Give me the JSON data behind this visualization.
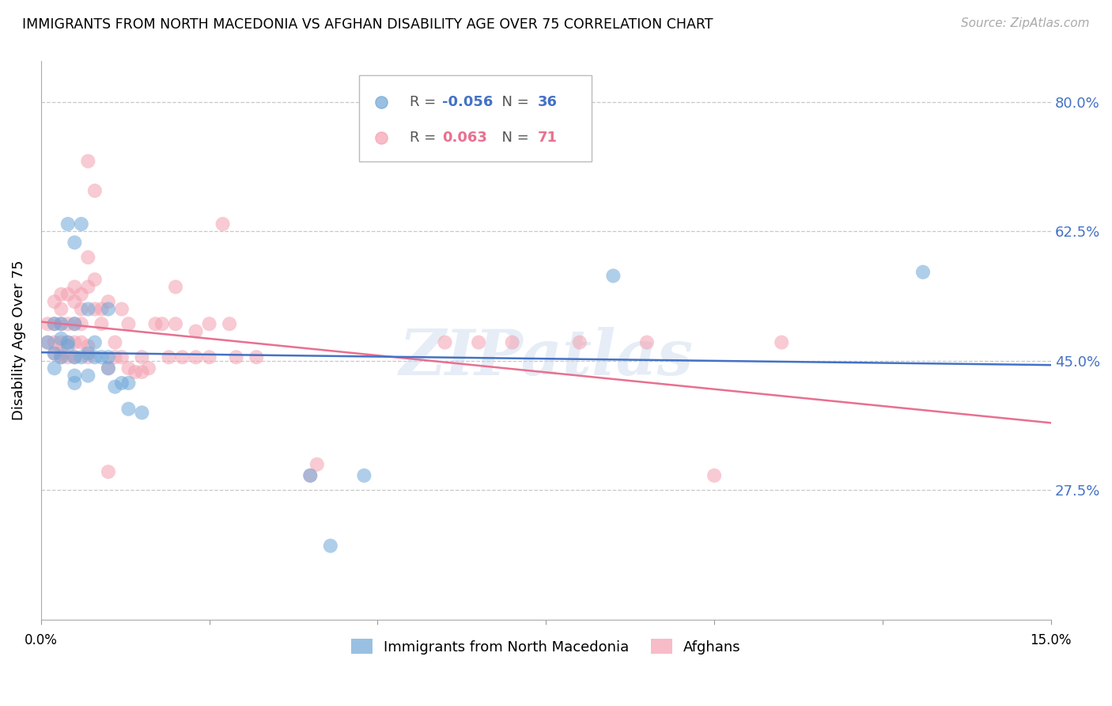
{
  "title": "IMMIGRANTS FROM NORTH MACEDONIA VS AFGHAN DISABILITY AGE OVER 75 CORRELATION CHART",
  "source": "Source: ZipAtlas.com",
  "ylabel": "Disability Age Over 75",
  "ytick_labels": [
    "80.0%",
    "62.5%",
    "45.0%",
    "27.5%"
  ],
  "ytick_values": [
    0.8,
    0.625,
    0.45,
    0.275
  ],
  "xmin": 0.0,
  "xmax": 0.15,
  "ymin": 0.1,
  "ymax": 0.855,
  "legend_blue_r": "-0.056",
  "legend_blue_n": "36",
  "legend_pink_r": "0.063",
  "legend_pink_n": "71",
  "blue_color": "#6EA6D7",
  "pink_color": "#F4A0B0",
  "blue_line_color": "#4472C4",
  "pink_line_color": "#E87090",
  "blue_scatter": [
    [
      0.001,
      0.475
    ],
    [
      0.002,
      0.46
    ],
    [
      0.002,
      0.5
    ],
    [
      0.003,
      0.48
    ],
    [
      0.003,
      0.455
    ],
    [
      0.003,
      0.5
    ],
    [
      0.004,
      0.475
    ],
    [
      0.004,
      0.47
    ],
    [
      0.004,
      0.635
    ],
    [
      0.005,
      0.61
    ],
    [
      0.005,
      0.5
    ],
    [
      0.005,
      0.455
    ],
    [
      0.005,
      0.43
    ],
    [
      0.005,
      0.42
    ],
    [
      0.006,
      0.635
    ],
    [
      0.006,
      0.455
    ],
    [
      0.007,
      0.52
    ],
    [
      0.007,
      0.46
    ],
    [
      0.007,
      0.43
    ],
    [
      0.008,
      0.475
    ],
    [
      0.008,
      0.455
    ],
    [
      0.009,
      0.455
    ],
    [
      0.01,
      0.52
    ],
    [
      0.01,
      0.455
    ],
    [
      0.01,
      0.44
    ],
    [
      0.011,
      0.415
    ],
    [
      0.012,
      0.42
    ],
    [
      0.013,
      0.42
    ],
    [
      0.013,
      0.385
    ],
    [
      0.015,
      0.38
    ],
    [
      0.04,
      0.295
    ],
    [
      0.043,
      0.2
    ],
    [
      0.048,
      0.295
    ],
    [
      0.085,
      0.565
    ],
    [
      0.131,
      0.57
    ],
    [
      0.002,
      0.44
    ]
  ],
  "pink_scatter": [
    [
      0.001,
      0.5
    ],
    [
      0.001,
      0.475
    ],
    [
      0.002,
      0.5
    ],
    [
      0.002,
      0.475
    ],
    [
      0.002,
      0.46
    ],
    [
      0.002,
      0.53
    ],
    [
      0.003,
      0.54
    ],
    [
      0.003,
      0.52
    ],
    [
      0.003,
      0.5
    ],
    [
      0.003,
      0.475
    ],
    [
      0.003,
      0.46
    ],
    [
      0.003,
      0.455
    ],
    [
      0.004,
      0.475
    ],
    [
      0.004,
      0.5
    ],
    [
      0.004,
      0.455
    ],
    [
      0.004,
      0.54
    ],
    [
      0.005,
      0.55
    ],
    [
      0.005,
      0.53
    ],
    [
      0.005,
      0.5
    ],
    [
      0.005,
      0.475
    ],
    [
      0.005,
      0.455
    ],
    [
      0.006,
      0.54
    ],
    [
      0.006,
      0.52
    ],
    [
      0.006,
      0.5
    ],
    [
      0.006,
      0.475
    ],
    [
      0.007,
      0.72
    ],
    [
      0.007,
      0.59
    ],
    [
      0.007,
      0.55
    ],
    [
      0.007,
      0.47
    ],
    [
      0.007,
      0.455
    ],
    [
      0.008,
      0.68
    ],
    [
      0.008,
      0.56
    ],
    [
      0.008,
      0.52
    ],
    [
      0.009,
      0.52
    ],
    [
      0.009,
      0.5
    ],
    [
      0.01,
      0.53
    ],
    [
      0.01,
      0.44
    ],
    [
      0.01,
      0.3
    ],
    [
      0.011,
      0.475
    ],
    [
      0.011,
      0.455
    ],
    [
      0.012,
      0.52
    ],
    [
      0.012,
      0.455
    ],
    [
      0.013,
      0.5
    ],
    [
      0.013,
      0.44
    ],
    [
      0.014,
      0.435
    ],
    [
      0.015,
      0.455
    ],
    [
      0.015,
      0.435
    ],
    [
      0.016,
      0.44
    ],
    [
      0.017,
      0.5
    ],
    [
      0.018,
      0.5
    ],
    [
      0.019,
      0.455
    ],
    [
      0.02,
      0.55
    ],
    [
      0.02,
      0.5
    ],
    [
      0.021,
      0.455
    ],
    [
      0.023,
      0.49
    ],
    [
      0.023,
      0.455
    ],
    [
      0.025,
      0.5
    ],
    [
      0.025,
      0.455
    ],
    [
      0.027,
      0.635
    ],
    [
      0.028,
      0.5
    ],
    [
      0.029,
      0.455
    ],
    [
      0.032,
      0.455
    ],
    [
      0.04,
      0.295
    ],
    [
      0.041,
      0.31
    ],
    [
      0.06,
      0.475
    ],
    [
      0.065,
      0.475
    ],
    [
      0.07,
      0.475
    ],
    [
      0.08,
      0.475
    ],
    [
      0.09,
      0.475
    ],
    [
      0.1,
      0.295
    ],
    [
      0.11,
      0.475
    ]
  ],
  "watermark": "ZIPatlas",
  "background_color": "#FFFFFF",
  "grid_color": "#C8C8C8"
}
